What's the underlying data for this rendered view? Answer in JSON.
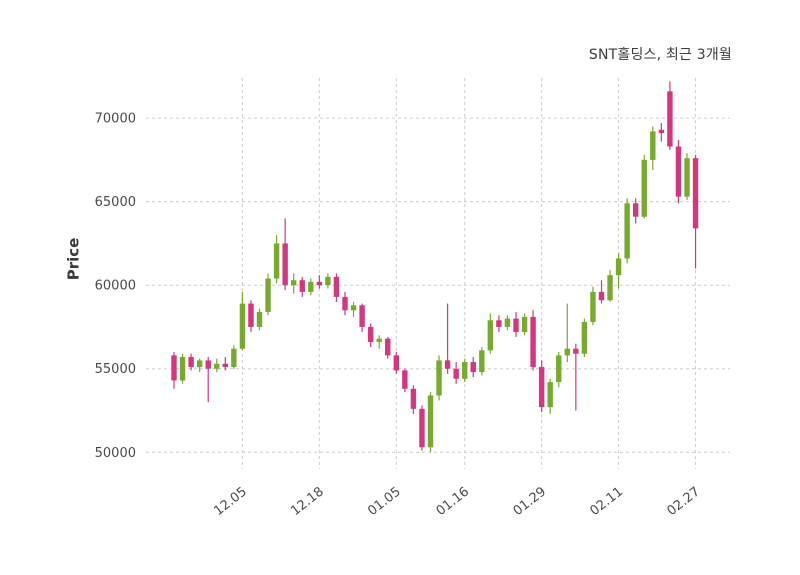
{
  "chart_data": {
    "type": "candlestick",
    "title": "SNT홀딩스, 최근 3개월",
    "ylabel": "Price",
    "xlabel": "",
    "grid": true,
    "grid_style": "dashed",
    "grid_color": "#cccccc",
    "up_color": "#77ab2f",
    "down_color": "#d4367f",
    "text_color": "#4a4a4a",
    "ylim": [
      49000,
      72400
    ],
    "yticks": [
      50000,
      55000,
      60000,
      65000,
      70000
    ],
    "xticks": [
      {
        "index": 8,
        "label": "12.05"
      },
      {
        "index": 17,
        "label": "12.18"
      },
      {
        "index": 26,
        "label": "01.05"
      },
      {
        "index": 34,
        "label": "01.16"
      },
      {
        "index": 43,
        "label": "01.29"
      },
      {
        "index": 52,
        "label": "02.11"
      },
      {
        "index": 61,
        "label": "02.27"
      }
    ],
    "ohlc_order": [
      "open",
      "high",
      "low",
      "close"
    ],
    "candles": [
      [
        55800,
        56000,
        53800,
        54300
      ],
      [
        54300,
        55900,
        54100,
        55700
      ],
      [
        55700,
        55900,
        54900,
        55100
      ],
      [
        55100,
        55600,
        54800,
        55500
      ],
      [
        55500,
        55700,
        53000,
        55000
      ],
      [
        55000,
        55600,
        54800,
        55300
      ],
      [
        55300,
        55700,
        54900,
        55100
      ],
      [
        55100,
        56400,
        55000,
        56200
      ],
      [
        56200,
        59600,
        56100,
        58900
      ],
      [
        58900,
        59100,
        57200,
        57500
      ],
      [
        57500,
        58600,
        57300,
        58400
      ],
      [
        58400,
        60700,
        58200,
        60400
      ],
      [
        60400,
        63000,
        60100,
        62500
      ],
      [
        62500,
        64000,
        59700,
        60000
      ],
      [
        60000,
        60700,
        59500,
        60300
      ],
      [
        60300,
        60500,
        59300,
        59600
      ],
      [
        59600,
        60400,
        59400,
        60200
      ],
      [
        60200,
        60600,
        59800,
        60000
      ],
      [
        60000,
        60700,
        59800,
        60500
      ],
      [
        60500,
        60700,
        59000,
        59300
      ],
      [
        59300,
        59600,
        58200,
        58500
      ],
      [
        58500,
        59000,
        58100,
        58800
      ],
      [
        58800,
        58900,
        57200,
        57500
      ],
      [
        57500,
        57700,
        56300,
        56600
      ],
      [
        56600,
        57000,
        56200,
        56800
      ],
      [
        56800,
        56900,
        55600,
        55800
      ],
      [
        55800,
        56000,
        54700,
        54900
      ],
      [
        54900,
        55000,
        53600,
        53800
      ],
      [
        53800,
        54000,
        52300,
        52600
      ],
      [
        52600,
        52800,
        50100,
        50300
      ],
      [
        50300,
        53600,
        50000,
        53400
      ],
      [
        53400,
        55800,
        53100,
        55500
      ],
      [
        55500,
        58900,
        54700,
        55000
      ],
      [
        55000,
        55400,
        54100,
        54400
      ],
      [
        54400,
        55600,
        54200,
        55400
      ],
      [
        55400,
        55700,
        54500,
        54800
      ],
      [
        54800,
        56300,
        54600,
        56100
      ],
      [
        56100,
        58300,
        55900,
        57900
      ],
      [
        57900,
        58200,
        57200,
        57500
      ],
      [
        57500,
        58200,
        57300,
        58000
      ],
      [
        58000,
        58400,
        56900,
        57200
      ],
      [
        57200,
        58300,
        57000,
        58100
      ],
      [
        58100,
        58500,
        54900,
        55100
      ],
      [
        55100,
        55500,
        52400,
        52700
      ],
      [
        52700,
        54400,
        52300,
        54200
      ],
      [
        54200,
        56000,
        53900,
        55800
      ],
      [
        55800,
        58900,
        55400,
        56200
      ],
      [
        56200,
        56500,
        52500,
        55900
      ],
      [
        55900,
        58000,
        55700,
        57800
      ],
      [
        57800,
        59900,
        57600,
        59600
      ],
      [
        59600,
        60300,
        58900,
        59100
      ],
      [
        59100,
        60900,
        59000,
        60600
      ],
      [
        60600,
        61900,
        59800,
        61600
      ],
      [
        61600,
        65200,
        61300,
        64900
      ],
      [
        64900,
        65200,
        63700,
        64100
      ],
      [
        64100,
        67800,
        64000,
        67500
      ],
      [
        67500,
        69500,
        66900,
        69200
      ],
      [
        69300,
        69700,
        68600,
        69100
      ],
      [
        71600,
        72200,
        68100,
        68300
      ],
      [
        68300,
        68700,
        64900,
        65300
      ],
      [
        65300,
        67900,
        65100,
        67600
      ],
      [
        67600,
        67800,
        61000,
        63400
      ]
    ]
  }
}
